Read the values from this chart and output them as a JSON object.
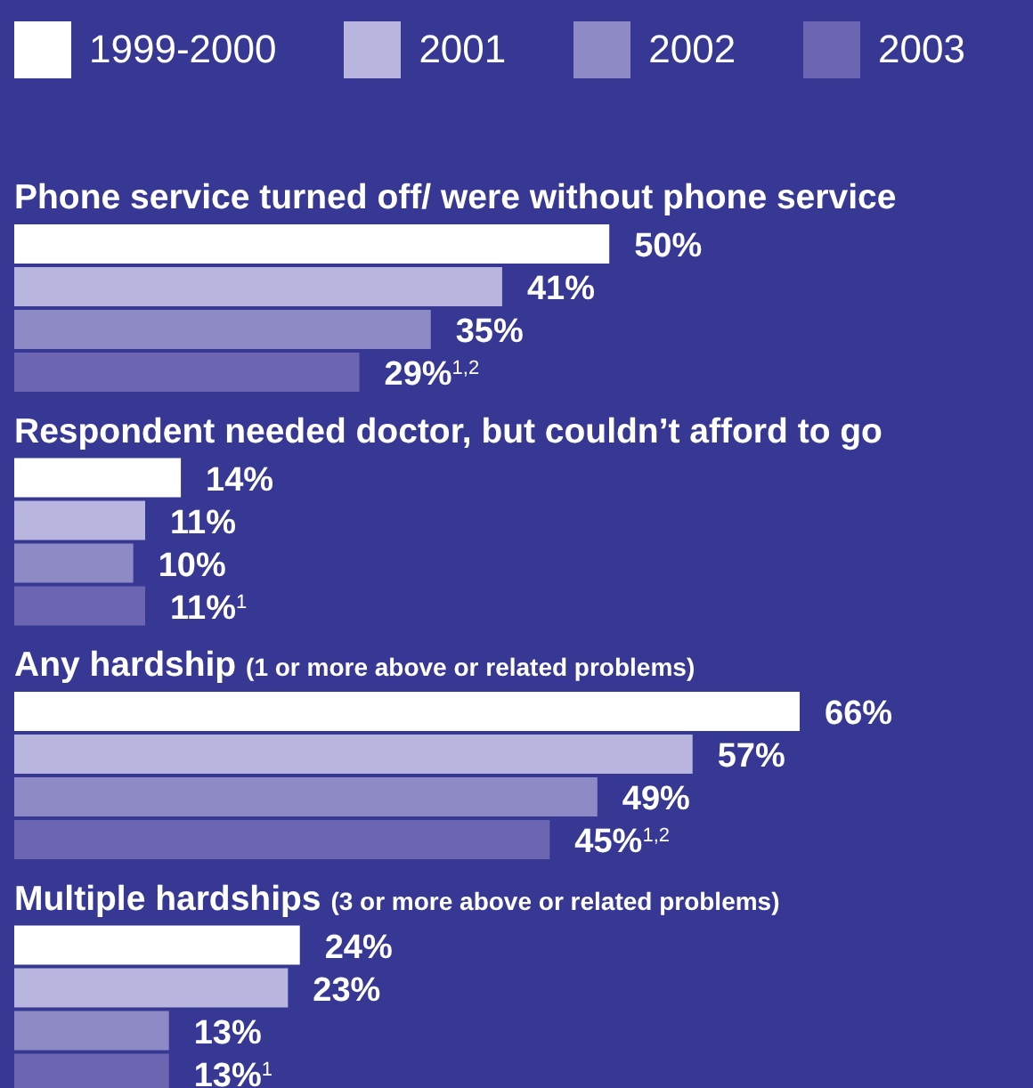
{
  "chart_data": {
    "type": "bar",
    "orientation": "horizontal",
    "categories": [
      "Phone service turned off/ were without phone service",
      "Respondent needed doctor, but couldn’t afford to go",
      "Any hardship (1 or more above or related problems)",
      "Multiple hardships (3 or more above or related problems)"
    ],
    "series": [
      {
        "name": "1999-2000",
        "color": "#ffffff",
        "values": [
          50,
          14,
          66,
          24
        ],
        "value_labels": [
          "50%",
          "14%",
          "66%",
          "24%"
        ]
      },
      {
        "name": "2001",
        "color": "#b8b5df",
        "values": [
          41,
          11,
          57,
          23
        ],
        "value_labels": [
          "41%",
          "11%",
          "57%",
          "23%"
        ]
      },
      {
        "name": "2002",
        "color": "#8e8ac6",
        "values": [
          35,
          10,
          49,
          13
        ],
        "value_labels": [
          "35%",
          "10%",
          "49%",
          "13%"
        ]
      },
      {
        "name": "2003",
        "color": "#6c66b2",
        "values": [
          29,
          11,
          45,
          13
        ],
        "value_labels": [
          "29%$^{1,2}$",
          "11%$^{1}$",
          "45%$^{1,2}$",
          "13%$^{1}$"
        ]
      }
    ],
    "legend": "top",
    "grid": false
  }
}
